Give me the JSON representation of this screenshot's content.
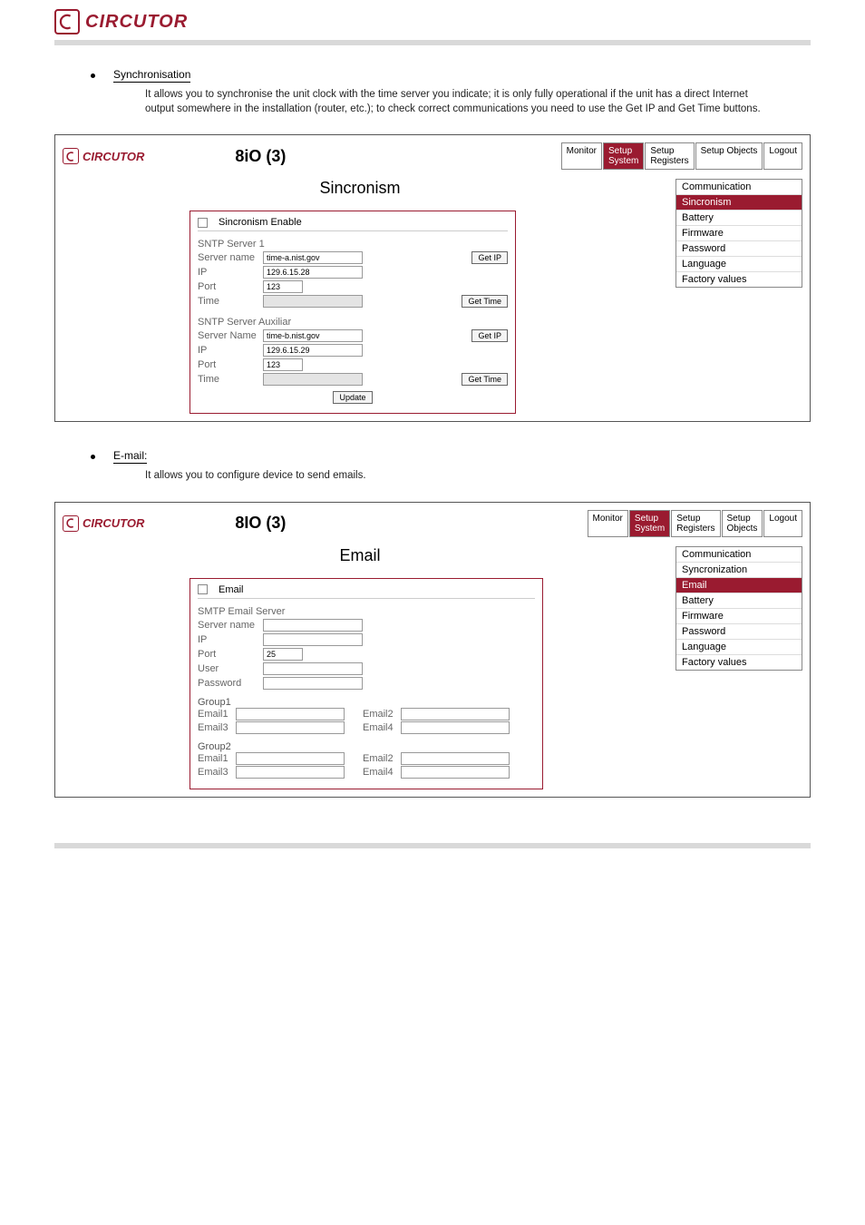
{
  "doc": {
    "logo_text": "CIRCUTOR",
    "hr_color": "#d9d9d9",
    "accent": "#9a1b30",
    "sections": [
      {
        "id": "sync",
        "bullet": "Synchronisation",
        "explain": "It allows you to synchronise the unit clock with the time server you indicate; it is only fully operational if the unit has a direct Internet output somewhere in the installation (router, etc.); to check correct communications you need to use the Get IP and Get Time buttons.",
        "header_title": "8iO (3)",
        "section_title": "Sincronism",
        "nav": [
          {
            "label": "Monitor",
            "active": false
          },
          {
            "label": "Setup\nSystem",
            "active": true
          },
          {
            "label": "Setup\nRegisters",
            "active": false
          },
          {
            "label": "Setup Objects",
            "active": false
          },
          {
            "label": "Logout",
            "active": false
          }
        ],
        "side_menu": [
          {
            "label": "Communication",
            "active": false
          },
          {
            "label": "Sincronism",
            "active": true
          },
          {
            "label": "Battery",
            "active": false
          },
          {
            "label": "Firmware",
            "active": false
          },
          {
            "label": "Password",
            "active": false
          },
          {
            "label": "Language",
            "active": false
          },
          {
            "label": "Factory values",
            "active": false
          }
        ],
        "form": {
          "enable_label": "Sincronism Enable",
          "server1_head": "SNTP Server 1",
          "server2_head": "SNTP Server Auxiliar",
          "labels": {
            "server_name": "Server name",
            "server_name2": "Server Name",
            "ip": "IP",
            "port": "Port",
            "time": "Time"
          },
          "server1": {
            "name": "time-a.nist.gov",
            "ip": "129.6.15.28",
            "port": "123",
            "time": ""
          },
          "server2": {
            "name": "time-b.nist.gov",
            "ip": "129.6.15.29",
            "port": "123",
            "time": ""
          },
          "buttons": {
            "get_ip": "Get IP",
            "get_time": "Get Time",
            "update": "Update"
          }
        }
      },
      {
        "id": "email",
        "bullet": "E-mail:",
        "explain": "It allows you to configure device to send emails.",
        "header_title": "8IO (3)",
        "section_title": "Email",
        "nav": [
          {
            "label": "Monitor",
            "active": false
          },
          {
            "label": "Setup\nSystem",
            "active": true
          },
          {
            "label": "Setup\nRegisters",
            "active": false
          },
          {
            "label": "Setup\nObjects",
            "active": false
          },
          {
            "label": "Logout",
            "active": false
          }
        ],
        "side_menu": [
          {
            "label": "Communication",
            "active": false
          },
          {
            "label": "Syncronization",
            "active": false
          },
          {
            "label": "Email",
            "active": true
          },
          {
            "label": "Battery",
            "active": false
          },
          {
            "label": "Firmware",
            "active": false
          },
          {
            "label": "Password",
            "active": false
          },
          {
            "label": "Language",
            "active": false
          },
          {
            "label": "Factory values",
            "active": false
          }
        ],
        "form": {
          "enable_label": "Email",
          "smtp_head": "SMTP Email Server",
          "labels": {
            "server_name": "Server name",
            "ip": "IP",
            "port": "Port",
            "user": "User",
            "password": "Password"
          },
          "smtp": {
            "server_name": "",
            "ip": "",
            "port": "25",
            "user": "",
            "password": ""
          },
          "group1_head": "Group1",
          "group2_head": "Group2",
          "group_labels": {
            "e1": "Email1",
            "e2": "Email2",
            "e3": "Email3",
            "e4": "Email4"
          }
        }
      }
    ]
  }
}
